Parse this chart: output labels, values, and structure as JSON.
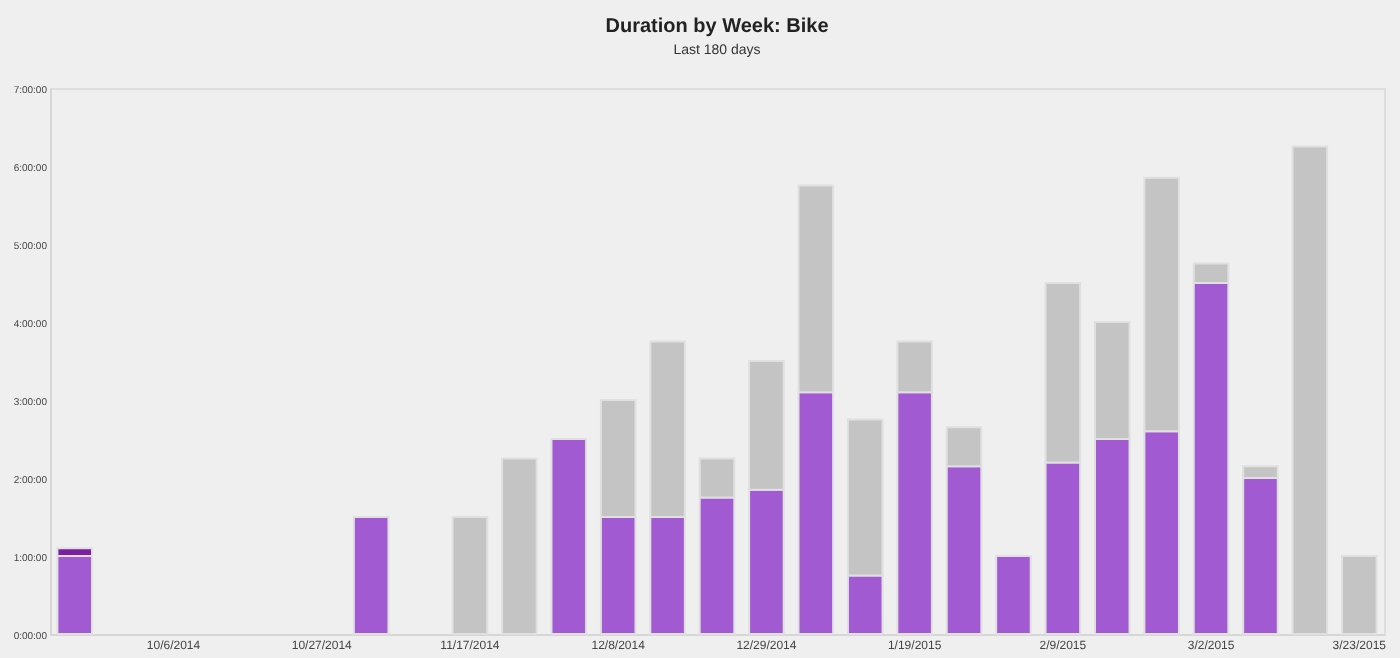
{
  "chart_data": {
    "type": "bar",
    "title": "Duration by Week: Bike",
    "subtitle": "Last 180 days",
    "stacked": true,
    "categories": [
      null,
      null,
      "10/6/2014",
      null,
      null,
      "10/27/2014",
      null,
      null,
      "11/17/2014",
      null,
      null,
      "12/8/2014",
      null,
      null,
      "12/29/2014",
      null,
      null,
      "1/19/2015",
      null,
      null,
      "2/9/2015",
      null,
      null,
      "3/2/2015",
      null,
      null,
      "3/23/2015"
    ],
    "series": [
      {
        "color": "#a15ad2",
        "values": [
          1.0,
          null,
          null,
          null,
          null,
          null,
          1.5,
          null,
          null,
          null,
          2.5,
          1.5,
          1.5,
          1.75,
          1.85,
          3.1,
          0.75,
          3.1,
          2.15,
          1.0,
          2.2,
          2.5,
          2.6,
          4.5,
          2.0,
          null,
          null
        ]
      },
      {
        "color": "#7b1fa2",
        "values": [
          0.1,
          null,
          null,
          null,
          null,
          null,
          null,
          null,
          null,
          null,
          null,
          null,
          null,
          null,
          null,
          null,
          null,
          null,
          null,
          null,
          null,
          null,
          null,
          null,
          null,
          null,
          null
        ]
      },
      {
        "color": "#c4c4c4",
        "values": [
          null,
          null,
          null,
          null,
          null,
          null,
          null,
          null,
          1.5,
          2.25,
          null,
          1.5,
          2.25,
          0.5,
          1.65,
          2.65,
          2.0,
          0.65,
          0.5,
          null,
          2.3,
          1.5,
          3.25,
          0.25,
          0.15,
          6.25,
          1.0
        ]
      }
    ],
    "ylim": [
      0,
      7
    ],
    "yticks": [
      {
        "value": 0,
        "label": "0:00:00"
      },
      {
        "value": 1,
        "label": "1:00:00"
      },
      {
        "value": 2,
        "label": "2:00:00"
      },
      {
        "value": 3,
        "label": "3:00:00"
      },
      {
        "value": 4,
        "label": "4:00:00"
      },
      {
        "value": 5,
        "label": "5:00:00"
      },
      {
        "value": 6,
        "label": "6:00:00"
      },
      {
        "value": 7,
        "label": "7:00:00"
      }
    ],
    "grid": false,
    "legend": false
  }
}
